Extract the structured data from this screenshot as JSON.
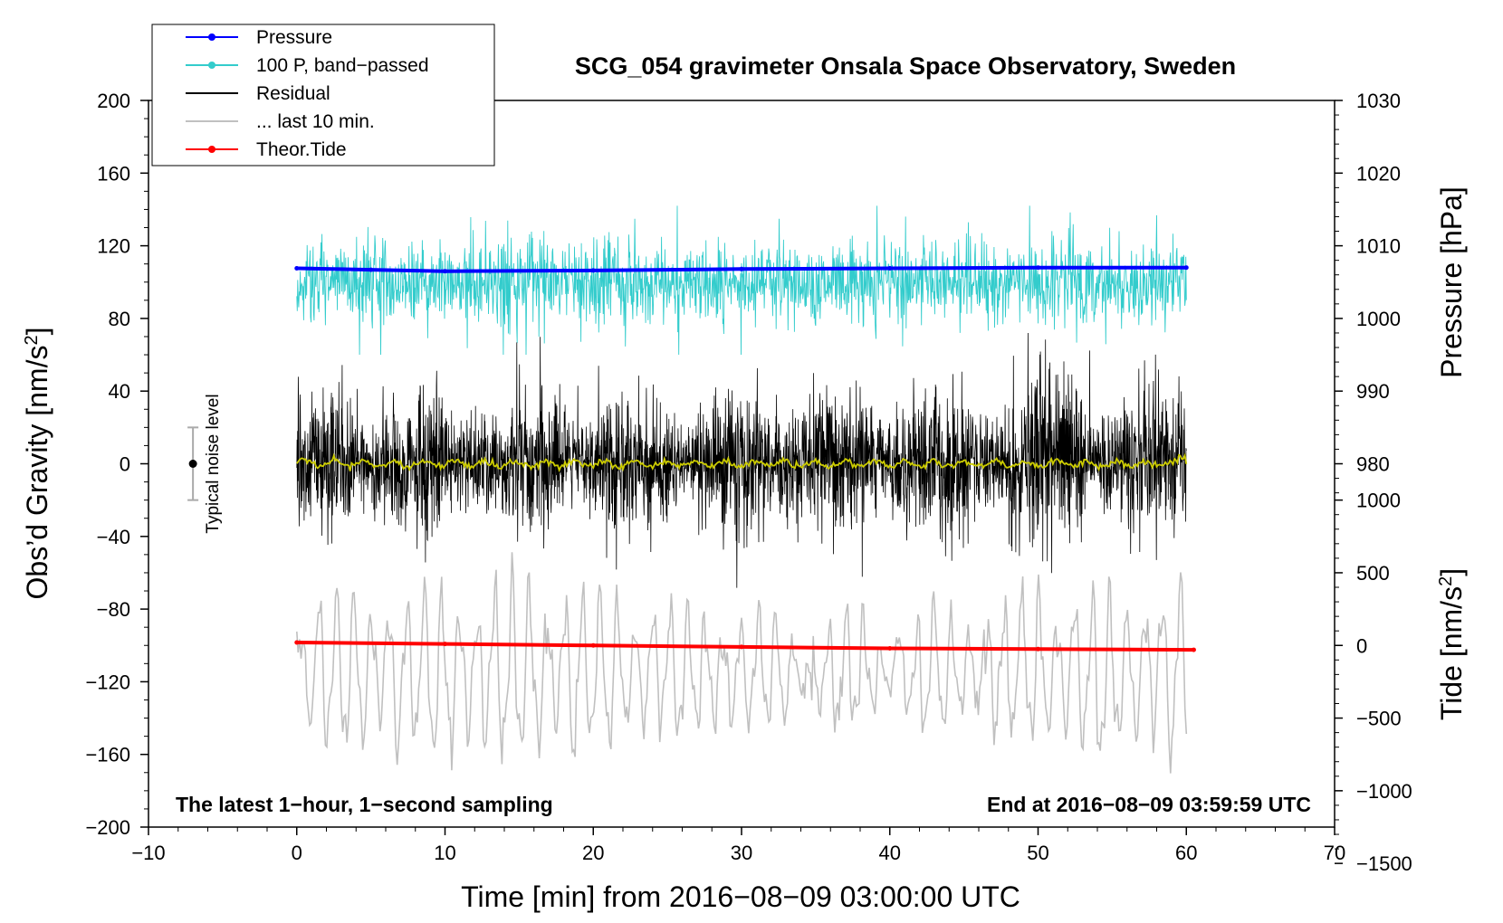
{
  "chart_data": {
    "type": "line",
    "title": "SCG_054 gravimeter Onsala Space Observatory, Sweden",
    "xlabel": "Time [min] from 2016−08−09 03:00:00 UTC",
    "ylabel_left": "Obs’d Gravity [nm/s²]",
    "ylabel_right_pressure": "Pressure [hPa]",
    "ylabel_right_tide": "Tide [nm/s²]",
    "xlim": [
      -10,
      70
    ],
    "ylim_left": [
      -200,
      200
    ],
    "x_ticks": [
      "−10",
      "0",
      "10",
      "20",
      "30",
      "40",
      "50",
      "60",
      "70"
    ],
    "x_tick_values": [
      -10,
      0,
      10,
      20,
      30,
      40,
      50,
      60,
      70
    ],
    "y_left_ticks": [
      "200",
      "160",
      "120",
      "80",
      "40",
      "0",
      "−40",
      "−80",
      "−120",
      "−160",
      "−200"
    ],
    "y_left_tick_values": [
      200,
      160,
      120,
      80,
      40,
      0,
      -40,
      -80,
      -120,
      -160,
      -200
    ],
    "pressure_axis": {
      "ticks": [
        "1030",
        "1020",
        "1010",
        "1000",
        "990",
        "980"
      ],
      "tick_values": [
        1030,
        1020,
        1010,
        1000,
        990,
        980
      ],
      "ref_value": 1000,
      "ref_gravity": 80,
      "gravity_per_unit": 4
    },
    "tide_axis": {
      "ticks": [
        "1000",
        "500",
        "0",
        "−500",
        "−1000",
        "−1500"
      ],
      "tick_values": [
        1000,
        500,
        0,
        -500,
        -1000,
        -1500
      ],
      "ref_value": 0,
      "ref_gravity": -100,
      "gravity_per_unit": 0.08
    },
    "series": [
      {
        "name": "Pressure",
        "color": "#0000ff",
        "style": "line-dot",
        "x": [
          0,
          5,
          10,
          20,
          30,
          40,
          50,
          60
        ],
        "values": [
          1006.9,
          1006.7,
          1006.5,
          1006.6,
          1006.8,
          1006.9,
          1007.0,
          1007.0
        ],
        "axis": "pressure"
      },
      {
        "name": "100 P, band−passed",
        "color": "#33cccc",
        "style": "line-dot",
        "center_gravity": 100,
        "amplitude_gravity": 15,
        "x_range": [
          0,
          60
        ]
      },
      {
        "name": "Residual",
        "color": "#000000",
        "style": "line",
        "center_gravity": 0,
        "amplitude_gravity": 25,
        "x_range": [
          0,
          60
        ]
      },
      {
        "name": "... last 10 min.",
        "color": "#c0c0c0",
        "style": "line",
        "center_gravity": -115,
        "amplitude_gravity": 35,
        "x_range": [
          0,
          60
        ]
      },
      {
        "name": "Theor.Tide",
        "color": "#ff0000",
        "style": "line-dot",
        "x": [
          0,
          10,
          20,
          30,
          40,
          50,
          60.5
        ],
        "values": [
          20,
          10,
          0,
          -10,
          -20,
          -25,
          -30
        ],
        "axis": "tide"
      }
    ],
    "smoothed_residual": {
      "color": "#cccc00",
      "center_gravity": 0,
      "amplitude_gravity": 1.5
    },
    "annotations": {
      "bottom_left": "The latest 1−hour, 1−second sampling",
      "bottom_right": "End at 2016−08−09 03:59:59 UTC",
      "noise_label": "Typical noise level",
      "noise_x": -7,
      "noise_center": 0,
      "noise_half_range": 20
    }
  },
  "legend": {
    "items": [
      {
        "label": "Pressure",
        "color": "#0000ff",
        "marker": true
      },
      {
        "label": "100 P, band−passed",
        "color": "#33cccc",
        "marker": true
      },
      {
        "label": "Residual",
        "color": "#000000",
        "marker": false
      },
      {
        "label": "... last 10 min.",
        "color": "#c0c0c0",
        "marker": false
      },
      {
        "label": "Theor.Tide",
        "color": "#ff0000",
        "marker": true
      }
    ]
  }
}
